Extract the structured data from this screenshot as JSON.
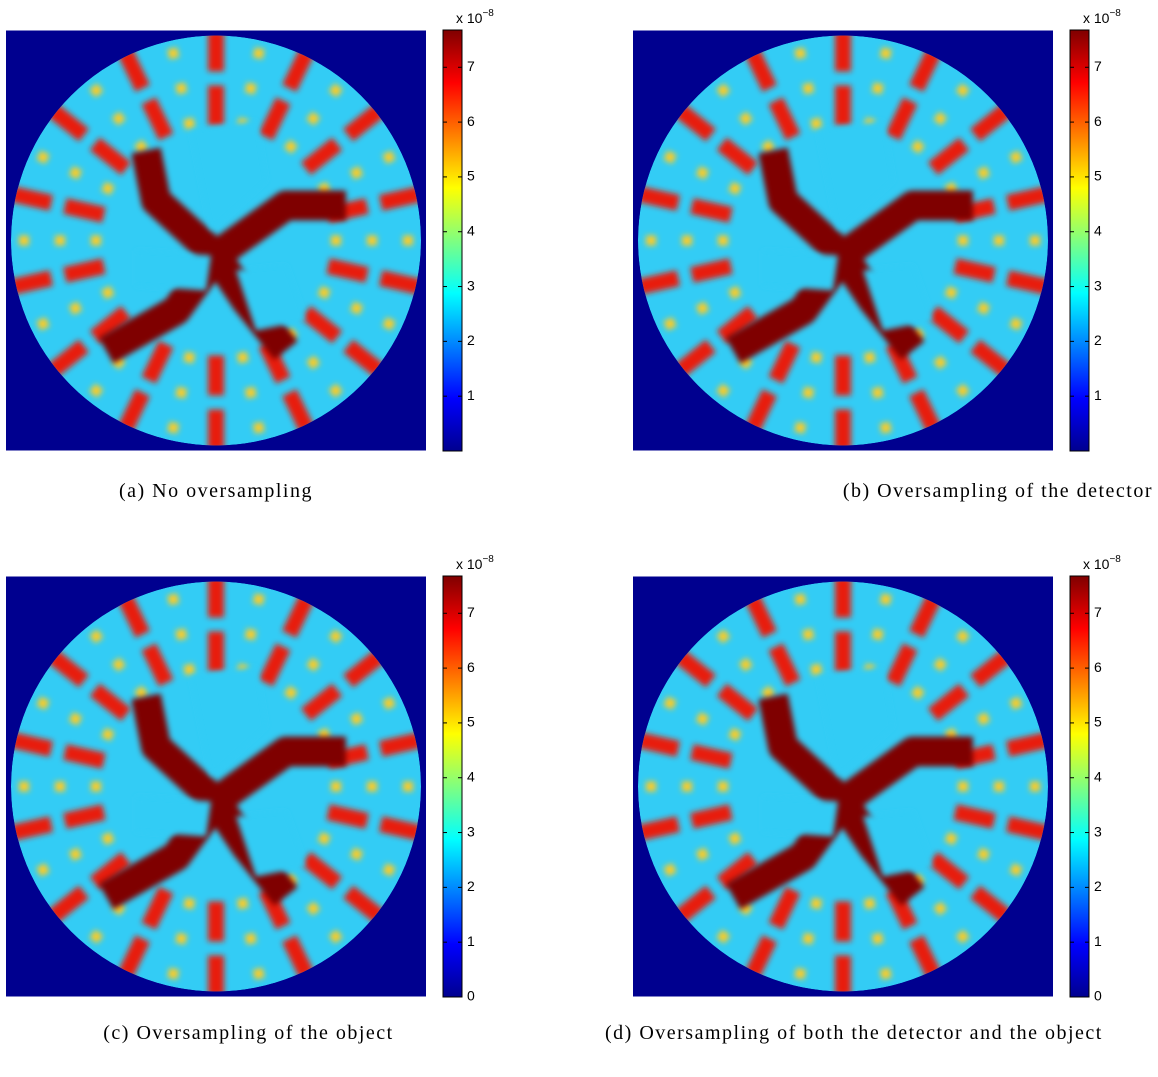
{
  "figure": {
    "panels": [
      {
        "caption": "(a) No oversampling",
        "colorbar": {
          "label": "x 10",
          "exponent": "−8",
          "clim": [
            0,
            7.68
          ],
          "ticks": [
            1,
            2,
            3,
            4,
            5,
            6,
            7
          ]
        }
      },
      {
        "caption": "(b) Oversampling of the detector",
        "colorbar": {
          "label": "x 10",
          "exponent": "−8",
          "clim": [
            0,
            7.68
          ],
          "ticks": [
            1,
            2,
            3,
            4,
            5,
            6,
            7
          ]
        }
      },
      {
        "caption": "(c) Oversampling of the object",
        "colorbar": {
          "label": "x 10",
          "exponent": "−8",
          "clim": [
            0,
            7.68
          ],
          "ticks": [
            0,
            1,
            2,
            3,
            4,
            5,
            6,
            7
          ]
        }
      },
      {
        "caption": "(d) Oversampling of both the detector and the object",
        "colorbar": {
          "label": "x 10",
          "exponent": "−8",
          "clim": [
            0,
            7.68
          ],
          "ticks": [
            0,
            1,
            2,
            3,
            4,
            5,
            6,
            7
          ]
        }
      }
    ]
  }
}
